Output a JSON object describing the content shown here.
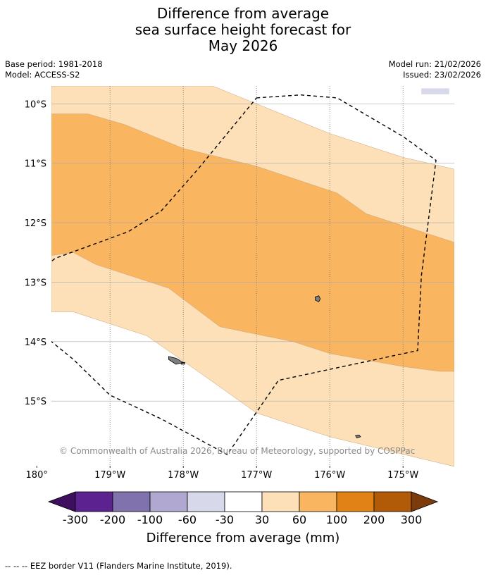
{
  "title": {
    "line1": "Difference from average",
    "line2": "sea surface height forecast for",
    "line3": "May 2026"
  },
  "meta": {
    "base_period": "Base period: 1981-2018",
    "model": "Model: ACCESS-S2",
    "model_run": "Model run: 21/02/2026",
    "issued": "Issued: 23/02/2026"
  },
  "copyright": "© Commonwealth of Australia 2026, Bureau of Meteorology, supported by COSPPac",
  "footnote": "--  --  -- EEZ border V11 (Flanders Marine Institute, 2019).",
  "colors": {
    "c_neg300": "#3f0f5f",
    "c_neg200": "#5b2290",
    "c_neg100": "#8073ad",
    "c_neg60": "#b1a8d1",
    "c_neg30": "#d8d8eb",
    "c_zero": "#ffffff",
    "c_30": "#fde0b8",
    "c_60": "#fab561",
    "c_100": "#e08216",
    "c_200": "#b15b09",
    "c_300": "#7d3b0c",
    "land": "#7f7f7f",
    "grid": "#aaaaaa",
    "eez": "#000000"
  },
  "chart_data": {
    "type": "heatmap",
    "title": "Difference from average sea surface height forecast for May 2026",
    "units": "mm",
    "lon_range": [
      -179.8,
      -174.3
    ],
    "lat_range": [
      -16.1,
      -9.7
    ],
    "x_ticks": [
      {
        "lon": 180,
        "label": "180°"
      },
      {
        "lon": -179,
        "label": "179°W"
      },
      {
        "lon": -178,
        "label": "178°W"
      },
      {
        "lon": -177,
        "label": "177°W"
      },
      {
        "lon": -176,
        "label": "176°W"
      },
      {
        "lon": -175,
        "label": "175°W"
      }
    ],
    "y_ticks": [
      {
        "lat": -10,
        "label": "10°S"
      },
      {
        "lat": -11,
        "label": "11°S"
      },
      {
        "lat": -12,
        "label": "12°S"
      },
      {
        "lat": -13,
        "label": "13°S"
      },
      {
        "lat": -14,
        "label": "14°S"
      },
      {
        "lat": -15,
        "label": "15°S"
      }
    ],
    "colorbar": {
      "title": "Difference from average (mm)",
      "boundaries": [
        -300,
        -200,
        -100,
        -60,
        -30,
        30,
        60,
        100,
        200,
        300
      ],
      "labels": [
        "-300",
        "-200",
        "-100",
        "-60",
        "-30",
        "30",
        "60",
        "100",
        "200",
        "300"
      ],
      "extend": "both"
    },
    "regions": [
      {
        "category": "-60 to -30",
        "points": [
          [
            -174.75,
            -9.74
          ],
          [
            -174.37,
            -9.74
          ],
          [
            -174.37,
            -9.84
          ],
          [
            -174.75,
            -9.84
          ]
        ]
      },
      {
        "category": "30 to 60",
        "points": [
          [
            -179.8,
            -9.7
          ],
          [
            -177.6,
            -9.7
          ],
          [
            -177.0,
            -10.0
          ],
          [
            -176.0,
            -10.5
          ],
          [
            -175.0,
            -10.9
          ],
          [
            -174.3,
            -11.1
          ],
          [
            -174.3,
            -16.1
          ],
          [
            -176.0,
            -15.6
          ],
          [
            -177.0,
            -15.2
          ],
          [
            -177.8,
            -14.5
          ],
          [
            -178.5,
            -13.9
          ],
          [
            -179.5,
            -13.5
          ],
          [
            -179.8,
            -13.5
          ]
        ]
      },
      {
        "category": "60 to 100",
        "points": [
          [
            -179.8,
            -10.17
          ],
          [
            -179.3,
            -10.17
          ],
          [
            -178.8,
            -10.35
          ],
          [
            -178.0,
            -10.75
          ],
          [
            -177.0,
            -11.05
          ],
          [
            -175.9,
            -11.5
          ],
          [
            -175.5,
            -11.85
          ],
          [
            -174.3,
            -12.33
          ],
          [
            -174.3,
            -14.5
          ],
          [
            -174.5,
            -14.5
          ],
          [
            -175.0,
            -14.42
          ],
          [
            -176.0,
            -14.2
          ],
          [
            -176.5,
            -14.0
          ],
          [
            -177.5,
            -13.75
          ],
          [
            -178.2,
            -13.1
          ],
          [
            -179.2,
            -12.7
          ],
          [
            -179.5,
            -12.5
          ],
          [
            -179.8,
            -12.55
          ]
        ]
      }
    ],
    "islands": [
      {
        "name": "",
        "points": [
          [
            -176.2,
            -13.25
          ],
          [
            -176.15,
            -13.23
          ],
          [
            -176.13,
            -13.28
          ],
          [
            -176.15,
            -13.33
          ],
          [
            -176.2,
            -13.3
          ]
        ]
      },
      {
        "name": "",
        "points": [
          [
            -178.2,
            -14.25
          ],
          [
            -178.1,
            -14.28
          ],
          [
            -178.0,
            -14.35
          ],
          [
            -178.1,
            -14.38
          ],
          [
            -178.2,
            -14.3
          ]
        ]
      },
      {
        "name": "",
        "points": [
          [
            -178.03,
            -14.36
          ],
          [
            -177.98,
            -14.35
          ],
          [
            -177.98,
            -14.38
          ],
          [
            -178.03,
            -14.38
          ]
        ]
      },
      {
        "name": "",
        "points": [
          [
            -175.65,
            -15.58
          ],
          [
            -175.6,
            -15.57
          ],
          [
            -175.58,
            -15.6
          ],
          [
            -175.63,
            -15.62
          ]
        ]
      }
    ],
    "eez_border": [
      [
        -177.0,
        -9.9
      ],
      [
        -176.4,
        -9.85
      ],
      [
        -175.9,
        -9.9
      ],
      [
        -175.0,
        -10.55
      ],
      [
        -174.55,
        -10.95
      ],
      [
        -174.75,
        -12.9
      ],
      [
        -174.8,
        -14.15
      ],
      [
        -176.7,
        -14.65
      ],
      [
        -177.4,
        -15.9
      ],
      [
        -177.7,
        -15.7
      ],
      [
        -178.3,
        -15.3
      ],
      [
        -179.0,
        -14.9
      ],
      [
        -179.5,
        -14.3
      ],
      [
        -180.0,
        -13.8
      ],
      [
        -180.5,
        -13.35
      ],
      [
        -179.75,
        -12.6
      ],
      [
        -178.75,
        -12.15
      ],
      [
        -178.3,
        -11.8
      ],
      [
        -177.8,
        -11.1
      ],
      [
        -177.0,
        -9.9
      ]
    ]
  }
}
